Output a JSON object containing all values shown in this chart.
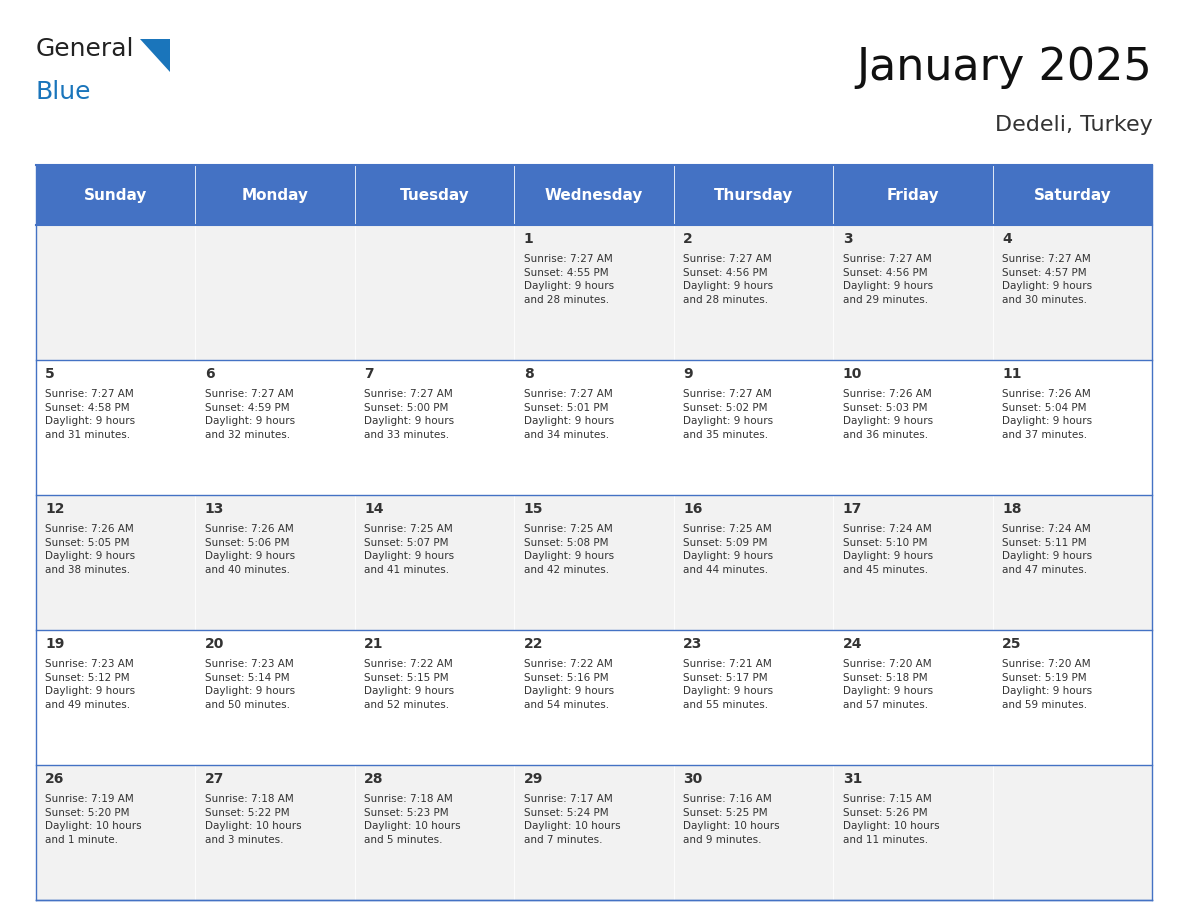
{
  "title": "January 2025",
  "subtitle": "Dedeli, Turkey",
  "header_color": "#4472C4",
  "header_text_color": "#FFFFFF",
  "days_of_week": [
    "Sunday",
    "Monday",
    "Tuesday",
    "Wednesday",
    "Thursday",
    "Friday",
    "Saturday"
  ],
  "background_color": "#FFFFFF",
  "cell_bg_even": "#F2F2F2",
  "cell_bg_odd": "#FFFFFF",
  "grid_line_color": "#4472C4",
  "day_number_color": "#333333",
  "cell_text_color": "#333333",
  "calendar_data": [
    [
      {
        "day": null,
        "info": ""
      },
      {
        "day": null,
        "info": ""
      },
      {
        "day": null,
        "info": ""
      },
      {
        "day": 1,
        "info": "Sunrise: 7:27 AM\nSunset: 4:55 PM\nDaylight: 9 hours\nand 28 minutes."
      },
      {
        "day": 2,
        "info": "Sunrise: 7:27 AM\nSunset: 4:56 PM\nDaylight: 9 hours\nand 28 minutes."
      },
      {
        "day": 3,
        "info": "Sunrise: 7:27 AM\nSunset: 4:56 PM\nDaylight: 9 hours\nand 29 minutes."
      },
      {
        "day": 4,
        "info": "Sunrise: 7:27 AM\nSunset: 4:57 PM\nDaylight: 9 hours\nand 30 minutes."
      }
    ],
    [
      {
        "day": 5,
        "info": "Sunrise: 7:27 AM\nSunset: 4:58 PM\nDaylight: 9 hours\nand 31 minutes."
      },
      {
        "day": 6,
        "info": "Sunrise: 7:27 AM\nSunset: 4:59 PM\nDaylight: 9 hours\nand 32 minutes."
      },
      {
        "day": 7,
        "info": "Sunrise: 7:27 AM\nSunset: 5:00 PM\nDaylight: 9 hours\nand 33 minutes."
      },
      {
        "day": 8,
        "info": "Sunrise: 7:27 AM\nSunset: 5:01 PM\nDaylight: 9 hours\nand 34 minutes."
      },
      {
        "day": 9,
        "info": "Sunrise: 7:27 AM\nSunset: 5:02 PM\nDaylight: 9 hours\nand 35 minutes."
      },
      {
        "day": 10,
        "info": "Sunrise: 7:26 AM\nSunset: 5:03 PM\nDaylight: 9 hours\nand 36 minutes."
      },
      {
        "day": 11,
        "info": "Sunrise: 7:26 AM\nSunset: 5:04 PM\nDaylight: 9 hours\nand 37 minutes."
      }
    ],
    [
      {
        "day": 12,
        "info": "Sunrise: 7:26 AM\nSunset: 5:05 PM\nDaylight: 9 hours\nand 38 minutes."
      },
      {
        "day": 13,
        "info": "Sunrise: 7:26 AM\nSunset: 5:06 PM\nDaylight: 9 hours\nand 40 minutes."
      },
      {
        "day": 14,
        "info": "Sunrise: 7:25 AM\nSunset: 5:07 PM\nDaylight: 9 hours\nand 41 minutes."
      },
      {
        "day": 15,
        "info": "Sunrise: 7:25 AM\nSunset: 5:08 PM\nDaylight: 9 hours\nand 42 minutes."
      },
      {
        "day": 16,
        "info": "Sunrise: 7:25 AM\nSunset: 5:09 PM\nDaylight: 9 hours\nand 44 minutes."
      },
      {
        "day": 17,
        "info": "Sunrise: 7:24 AM\nSunset: 5:10 PM\nDaylight: 9 hours\nand 45 minutes."
      },
      {
        "day": 18,
        "info": "Sunrise: 7:24 AM\nSunset: 5:11 PM\nDaylight: 9 hours\nand 47 minutes."
      }
    ],
    [
      {
        "day": 19,
        "info": "Sunrise: 7:23 AM\nSunset: 5:12 PM\nDaylight: 9 hours\nand 49 minutes."
      },
      {
        "day": 20,
        "info": "Sunrise: 7:23 AM\nSunset: 5:14 PM\nDaylight: 9 hours\nand 50 minutes."
      },
      {
        "day": 21,
        "info": "Sunrise: 7:22 AM\nSunset: 5:15 PM\nDaylight: 9 hours\nand 52 minutes."
      },
      {
        "day": 22,
        "info": "Sunrise: 7:22 AM\nSunset: 5:16 PM\nDaylight: 9 hours\nand 54 minutes."
      },
      {
        "day": 23,
        "info": "Sunrise: 7:21 AM\nSunset: 5:17 PM\nDaylight: 9 hours\nand 55 minutes."
      },
      {
        "day": 24,
        "info": "Sunrise: 7:20 AM\nSunset: 5:18 PM\nDaylight: 9 hours\nand 57 minutes."
      },
      {
        "day": 25,
        "info": "Sunrise: 7:20 AM\nSunset: 5:19 PM\nDaylight: 9 hours\nand 59 minutes."
      }
    ],
    [
      {
        "day": 26,
        "info": "Sunrise: 7:19 AM\nSunset: 5:20 PM\nDaylight: 10 hours\nand 1 minute."
      },
      {
        "day": 27,
        "info": "Sunrise: 7:18 AM\nSunset: 5:22 PM\nDaylight: 10 hours\nand 3 minutes."
      },
      {
        "day": 28,
        "info": "Sunrise: 7:18 AM\nSunset: 5:23 PM\nDaylight: 10 hours\nand 5 minutes."
      },
      {
        "day": 29,
        "info": "Sunrise: 7:17 AM\nSunset: 5:24 PM\nDaylight: 10 hours\nand 7 minutes."
      },
      {
        "day": 30,
        "info": "Sunrise: 7:16 AM\nSunset: 5:25 PM\nDaylight: 10 hours\nand 9 minutes."
      },
      {
        "day": 31,
        "info": "Sunrise: 7:15 AM\nSunset: 5:26 PM\nDaylight: 10 hours\nand 11 minutes."
      },
      {
        "day": null,
        "info": ""
      }
    ]
  ]
}
